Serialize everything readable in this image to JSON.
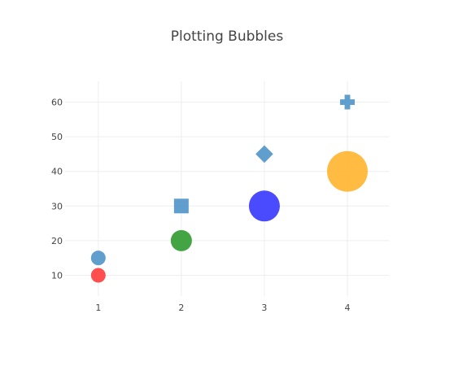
{
  "chart_data": {
    "type": "scatter",
    "title": "Plotting Bubbles",
    "xlabel": "",
    "ylabel": "",
    "xlim": [
      0.6,
      4.5
    ],
    "ylim": [
      4,
      66
    ],
    "x_ticks": [
      1,
      2,
      3,
      4
    ],
    "y_ticks": [
      10,
      20,
      30,
      40,
      50,
      60
    ],
    "grid": true,
    "legend": "none",
    "series": [
      {
        "marker": "circle",
        "points": [
          {
            "x": 1,
            "y": 10,
            "size": 18,
            "color": "#ff4444",
            "opacity": 0.95
          },
          {
            "x": 2,
            "y": 20,
            "size": 26,
            "color": "#2e9a2e",
            "opacity": 0.9
          },
          {
            "x": 3,
            "y": 30,
            "size": 38,
            "color": "#4040ff",
            "opacity": 0.95
          },
          {
            "x": 4,
            "y": 40,
            "size": 50,
            "color": "#ffb42e",
            "opacity": 0.9
          }
        ]
      },
      {
        "markers": [
          "circle",
          "square",
          "diamond",
          "cross"
        ],
        "points": [
          {
            "x": 1,
            "y": 15,
            "size": 18,
            "color": "#4f94c8",
            "opacity": 0.9,
            "marker": "circle"
          },
          {
            "x": 2,
            "y": 30,
            "size": 18,
            "color": "#4f94c8",
            "opacity": 0.9,
            "marker": "square"
          },
          {
            "x": 3,
            "y": 45,
            "size": 18,
            "color": "#4f94c8",
            "opacity": 0.9,
            "marker": "diamond"
          },
          {
            "x": 4,
            "y": 60,
            "size": 18,
            "color": "#4f94c8",
            "opacity": 0.9,
            "marker": "cross"
          }
        ]
      }
    ]
  }
}
